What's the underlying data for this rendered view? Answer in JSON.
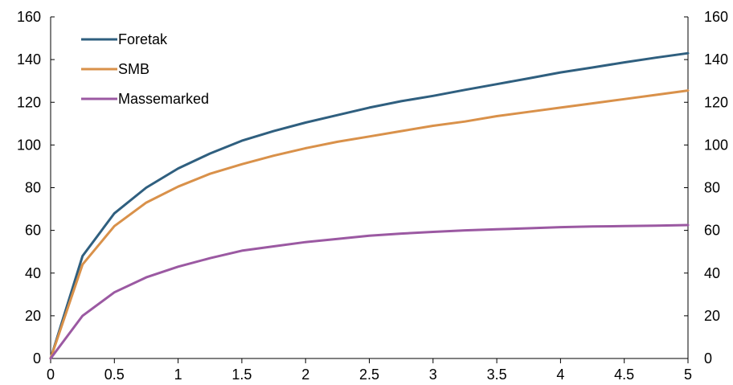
{
  "chart_data": {
    "type": "line",
    "title": "",
    "xlabel": "",
    "ylabel": "",
    "xlim": [
      0,
      5
    ],
    "ylim": [
      0,
      160
    ],
    "x_ticks": [
      "0",
      "0.5",
      "1",
      "1.5",
      "2",
      "2.5",
      "3",
      "3.5",
      "4",
      "4.5",
      "5"
    ],
    "y_ticks": [
      "0",
      "20",
      "40",
      "60",
      "80",
      "100",
      "120",
      "140",
      "160"
    ],
    "grid": false,
    "legend_position": "top-left",
    "x": [
      0,
      0.25,
      0.5,
      0.75,
      1,
      1.25,
      1.5,
      1.75,
      2,
      2.25,
      2.5,
      2.75,
      3,
      3.25,
      3.5,
      3.75,
      4,
      4.25,
      4.5,
      4.75,
      5
    ],
    "series": [
      {
        "name": "Foretak",
        "color": "#2f5f7f",
        "values": [
          0,
          48,
          68,
          80,
          89,
          96,
          102,
          106.5,
          110.5,
          114,
          117.5,
          120.5,
          123,
          125.8,
          128.5,
          131.2,
          134,
          136.3,
          138.7,
          140.9,
          143
        ]
      },
      {
        "name": "SMB",
        "color": "#d9914a",
        "values": [
          0,
          44,
          62,
          73,
          80.5,
          86.5,
          91,
          95,
          98.5,
          101.5,
          104,
          106.5,
          109,
          111,
          113.5,
          115.5,
          117.5,
          119.5,
          121.5,
          123.5,
          125.5
        ]
      },
      {
        "name": "Massemarked",
        "color": "#9b59a2",
        "values": [
          0,
          20,
          31,
          38,
          43,
          47,
          50.5,
          52.5,
          54.5,
          56,
          57.5,
          58.5,
          59.3,
          60,
          60.5,
          61,
          61.5,
          61.8,
          62,
          62.2,
          62.5
        ]
      }
    ]
  }
}
